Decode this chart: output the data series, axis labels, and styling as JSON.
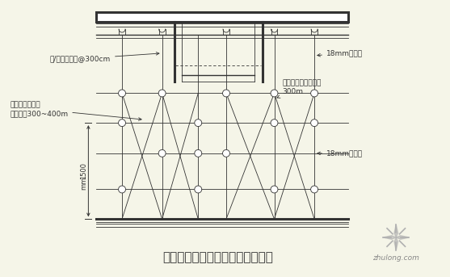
{
  "title": "有梁位置、上层梁模板安装示意图",
  "bg_color": "#f5f5e8",
  "line_color": "#333333",
  "title_fontsize": 11,
  "ann_fontsize": 6.5,
  "watermark_text": "zhulong.com",
  "logo_color": "#b0b0b0",
  "ann_left_top1": "斜/橫檁木底板",
  "ann_left_top2": "@300cm",
  "ann_left_mid1": "固定橫支撑条、",
  "ann_left_mid2": "板内左右300~400m",
  "ann_right_top": "18mm多层板",
  "ann_right_mid1": "竖立柱往定心下管下",
  "ann_right_mid2": "300m",
  "ann_right_low": "18mm多层板",
  "dim_label1": "1500",
  "dim_label2": "mm"
}
